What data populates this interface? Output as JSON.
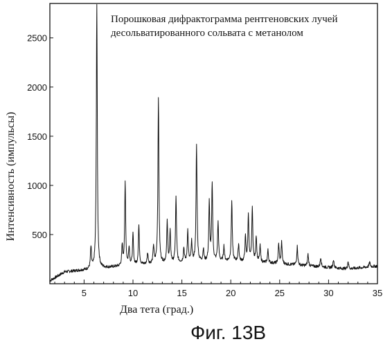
{
  "chart_data": {
    "type": "line",
    "title_lines": [
      "Порошковая дифрактограмма рентгеновских лучей",
      "десольватированного сольвата с метанолом"
    ],
    "xlabel": "Два тета (град.)",
    "ylabel": "Интенсивность (импульсы)",
    "xlim": [
      1.5,
      35
    ],
    "ylim": [
      0,
      2850
    ],
    "x_ticks": [
      5,
      10,
      15,
      20,
      25,
      30,
      35
    ],
    "y_ticks": [
      500,
      1000,
      1500,
      2000,
      2500
    ],
    "grid": false,
    "line_color": "#111111",
    "baseline": [
      [
        1.5,
        30
      ],
      [
        3,
        120
      ],
      [
        5,
        140
      ],
      [
        8,
        170
      ],
      [
        12,
        200
      ],
      [
        16,
        220
      ],
      [
        20,
        230
      ],
      [
        24,
        210
      ],
      [
        28,
        180
      ],
      [
        32,
        150
      ],
      [
        35,
        180
      ]
    ],
    "peaks": [
      {
        "x": 5.7,
        "y": 360
      },
      {
        "x": 6.3,
        "y": 2850
      },
      {
        "x": 8.9,
        "y": 380
      },
      {
        "x": 9.2,
        "y": 1020
      },
      {
        "x": 9.6,
        "y": 370
      },
      {
        "x": 10.0,
        "y": 500
      },
      {
        "x": 10.6,
        "y": 590
      },
      {
        "x": 11.5,
        "y": 310
      },
      {
        "x": 12.1,
        "y": 380
      },
      {
        "x": 12.6,
        "y": 1900
      },
      {
        "x": 13.5,
        "y": 620
      },
      {
        "x": 13.8,
        "y": 520
      },
      {
        "x": 14.4,
        "y": 880
      },
      {
        "x": 15.2,
        "y": 360
      },
      {
        "x": 15.6,
        "y": 540
      },
      {
        "x": 16.0,
        "y": 420
      },
      {
        "x": 16.5,
        "y": 1410
      },
      {
        "x": 17.2,
        "y": 350
      },
      {
        "x": 17.8,
        "y": 820
      },
      {
        "x": 18.1,
        "y": 1020
      },
      {
        "x": 18.7,
        "y": 620
      },
      {
        "x": 19.3,
        "y": 380
      },
      {
        "x": 20.1,
        "y": 840
      },
      {
        "x": 20.8,
        "y": 400
      },
      {
        "x": 21.5,
        "y": 470
      },
      {
        "x": 21.8,
        "y": 700
      },
      {
        "x": 22.2,
        "y": 770
      },
      {
        "x": 22.6,
        "y": 480
      },
      {
        "x": 23.0,
        "y": 380
      },
      {
        "x": 23.8,
        "y": 340
      },
      {
        "x": 24.9,
        "y": 400
      },
      {
        "x": 25.2,
        "y": 420
      },
      {
        "x": 26.8,
        "y": 380
      },
      {
        "x": 27.9,
        "y": 300
      },
      {
        "x": 29.2,
        "y": 270
      },
      {
        "x": 30.5,
        "y": 250
      },
      {
        "x": 32.0,
        "y": 230
      },
      {
        "x": 34.2,
        "y": 220
      }
    ]
  },
  "caption": "Фиг. 13B"
}
